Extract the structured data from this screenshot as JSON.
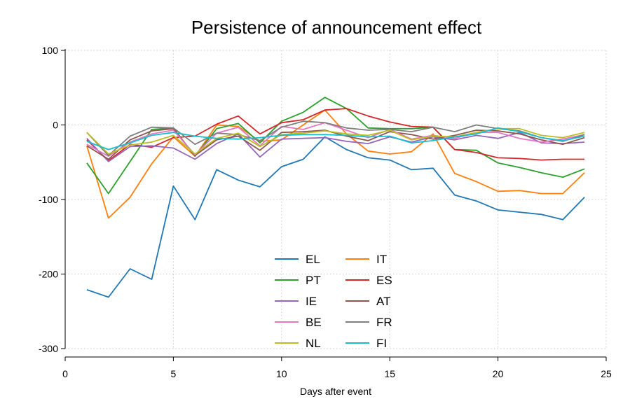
{
  "chart_data": {
    "type": "line",
    "title": "Persistence of announcement effect",
    "xlabel": "Days after event",
    "ylabel": "",
    "xlim": [
      0,
      25
    ],
    "ylim": [
      -300,
      100
    ],
    "x_ticks": [
      0,
      5,
      10,
      15,
      20,
      25
    ],
    "y_ticks": [
      100,
      0,
      -100,
      -200,
      -300
    ],
    "grid": true,
    "legend_position": "bottom-center",
    "x": [
      1,
      2,
      3,
      4,
      5,
      6,
      7,
      8,
      9,
      10,
      11,
      12,
      13,
      14,
      15,
      16,
      17,
      18,
      19,
      20,
      21,
      22,
      23,
      24
    ],
    "series": [
      {
        "name": "EL",
        "color": "#1f77b4",
        "values": [
          -221,
          -231,
          -193,
          -207,
          -82,
          -127,
          -60,
          -74,
          -83,
          -56,
          -46,
          -16,
          -33,
          -44,
          -47,
          -60,
          -58,
          -94,
          -102,
          -114,
          -117,
          -120,
          -127,
          -97
        ]
      },
      {
        "name": "IT",
        "color": "#ff7f0e",
        "values": [
          -28,
          -125,
          -97,
          -52,
          -16,
          -42,
          0,
          -2,
          -22,
          -20,
          0,
          20,
          -12,
          -35,
          -39,
          -36,
          -12,
          -65,
          -76,
          -89,
          -88,
          -92,
          -92,
          -64
        ]
      },
      {
        "name": "PT",
        "color": "#2ca02c",
        "values": [
          -51,
          -92,
          -49,
          -6,
          -4,
          -42,
          -5,
          2,
          -24,
          5,
          17,
          37,
          22,
          -4,
          -5,
          -5,
          -3,
          -33,
          -34,
          -51,
          -57,
          -64,
          -70,
          -59
        ]
      },
      {
        "name": "ES",
        "color": "#d62728",
        "values": [
          -20,
          -48,
          -26,
          -30,
          -17,
          -15,
          1,
          12,
          -12,
          3,
          7,
          20,
          22,
          12,
          4,
          -2,
          -3,
          -33,
          -37,
          -44,
          -45,
          -47,
          -46,
          -46
        ]
      },
      {
        "name": "IE",
        "color": "#9467bd",
        "values": [
          -18,
          -49,
          -29,
          -28,
          -31,
          -46,
          -25,
          -12,
          -43,
          -19,
          -18,
          -17,
          -22,
          -25,
          -16,
          -23,
          -16,
          -20,
          -14,
          -18,
          -10,
          -24,
          -25,
          -23
        ]
      },
      {
        "name": "AT",
        "color": "#8c564b",
        "values": [
          -28,
          -46,
          -20,
          -8,
          -5,
          -41,
          -20,
          -15,
          -34,
          -10,
          -9,
          -7,
          -15,
          -21,
          -9,
          -13,
          -19,
          -14,
          -7,
          -8,
          -12,
          -20,
          -26,
          -17
        ]
      },
      {
        "name": "BE",
        "color": "#e377c2",
        "values": [
          -26,
          -42,
          -23,
          -12,
          -7,
          -40,
          -11,
          -3,
          -28,
          -2,
          -6,
          3,
          -7,
          -17,
          -6,
          -19,
          -14,
          -18,
          -10,
          -10,
          -18,
          -23,
          -19,
          -13
        ]
      },
      {
        "name": "FR",
        "color": "#7f7f7f",
        "values": [
          -10,
          -41,
          -15,
          -3,
          -4,
          -26,
          -11,
          -13,
          -21,
          -3,
          5,
          3,
          -4,
          -7,
          -6,
          -9,
          -3,
          -9,
          0,
          -5,
          -8,
          -17,
          -22,
          -13
        ]
      },
      {
        "name": "NL",
        "color": "#bcbd22",
        "values": [
          -10,
          -39,
          -27,
          -23,
          -14,
          -39,
          -18,
          -11,
          -29,
          -13,
          -11,
          -8,
          -12,
          -14,
          -7,
          -20,
          -15,
          -16,
          -10,
          -5,
          -5,
          -14,
          -17,
          -10
        ]
      },
      {
        "name": "FI",
        "color": "#17becf",
        "values": [
          -22,
          -33,
          -24,
          -14,
          -10,
          -15,
          -18,
          -19,
          -17,
          -14,
          -13,
          -13,
          -14,
          -16,
          -15,
          -24,
          -21,
          -16,
          -12,
          -4,
          -9,
          -17,
          -21,
          -15
        ]
      }
    ]
  }
}
